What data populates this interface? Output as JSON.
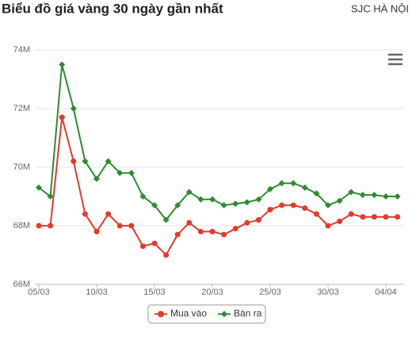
{
  "chart_data": {
    "type": "line",
    "title": "Biểu đồ giá vàng 30 ngày gần nhất",
    "subtitle": "SJC HÀ NỘI",
    "categories": [
      "05/03",
      null,
      null,
      null,
      null,
      "10/03",
      null,
      null,
      null,
      null,
      "15/03",
      null,
      null,
      null,
      null,
      "20/03",
      null,
      null,
      null,
      null,
      "25/03",
      null,
      null,
      null,
      null,
      "30/03",
      null,
      null,
      null,
      null,
      "04/04",
      null
    ],
    "series": [
      {
        "name": "Mua vào",
        "color": "#e53a2b",
        "values": [
          68,
          68,
          71.7,
          70.2,
          68.4,
          67.8,
          68.4,
          68,
          68,
          67.3,
          67.4,
          67,
          67.7,
          68.1,
          67.8,
          67.8,
          67.7,
          67.9,
          68.1,
          68.2,
          68.55,
          68.7,
          68.7,
          68.6,
          68.4,
          68,
          68.15,
          68.4,
          68.3,
          68.3,
          68.3,
          68.3
        ]
      },
      {
        "name": "Bán ra",
        "color": "#2e8b2e",
        "values": [
          69.3,
          69,
          73.5,
          72,
          70.2,
          69.6,
          70.2,
          69.8,
          69.8,
          69,
          68.7,
          68.2,
          68.7,
          69.15,
          68.9,
          68.9,
          68.7,
          68.75,
          68.8,
          68.9,
          69.25,
          69.45,
          69.45,
          69.3,
          69.1,
          68.7,
          68.85,
          69.15,
          69.05,
          69.05,
          69,
          69
        ]
      }
    ],
    "ylim": [
      66,
      74
    ],
    "yticks": [
      {
        "value": 66,
        "label": "66M"
      },
      {
        "value": 68,
        "label": "68M"
      },
      {
        "value": 70,
        "label": "70M"
      },
      {
        "value": 72,
        "label": "72M"
      },
      {
        "value": 74,
        "label": "74M"
      }
    ],
    "grid": true
  }
}
